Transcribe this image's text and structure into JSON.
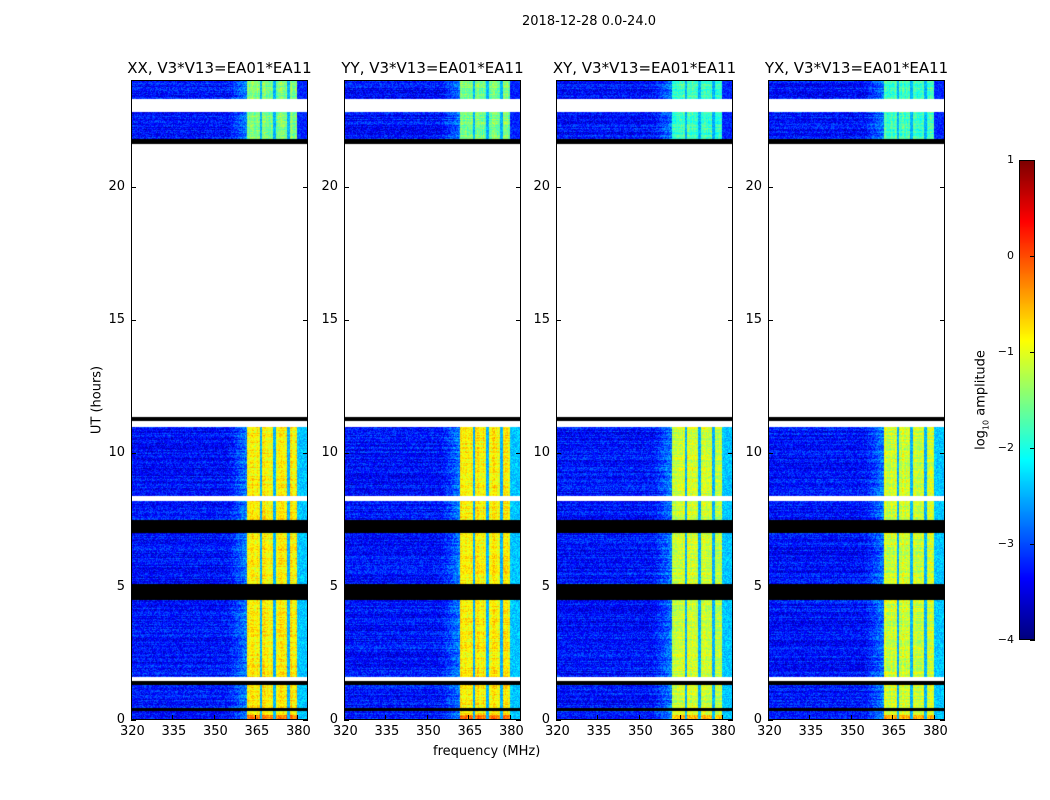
{
  "chart_data": {
    "type": "heatmap",
    "title": "2018-12-28 0.0-24.0",
    "xlabel": "frequency (MHz)",
    "ylabel": "UT (hours)",
    "xlim": [
      320,
      384
    ],
    "ylim": [
      0,
      24
    ],
    "xticks": [
      "320",
      "335",
      "350",
      "365",
      "380"
    ],
    "xtick_values": [
      320,
      335,
      350,
      365,
      380
    ],
    "yticks": [
      "0",
      "5",
      "10",
      "15",
      "20"
    ],
    "ytick_values": [
      0,
      5,
      10,
      15,
      20
    ],
    "panels": [
      {
        "title": "XX, V3*V13=EA01*EA11"
      },
      {
        "title": "YY, V3*V13=EA01*EA11"
      },
      {
        "title": "XY, V3*V13=EA01*EA11"
      },
      {
        "title": "YX, V3*V13=EA01*EA11"
      }
    ],
    "colorbar": {
      "label_prefix": "log",
      "label_sub": "10",
      "label_suffix": " amplitude",
      "colormap": "jet",
      "range": [
        -4,
        1
      ],
      "ticks": [
        "1",
        "0",
        "−1",
        "−2",
        "−3",
        "−4"
      ],
      "tick_values": [
        1,
        0,
        -1,
        -2,
        -3,
        -4
      ]
    },
    "time_segments_hours": [
      {
        "from": 0.0,
        "to": 0.35,
        "state": "data"
      },
      {
        "from": 0.35,
        "to": 0.45,
        "state": "flagged"
      },
      {
        "from": 0.45,
        "to": 1.3,
        "state": "data"
      },
      {
        "from": 1.3,
        "to": 1.45,
        "state": "flagged"
      },
      {
        "from": 1.45,
        "to": 1.6,
        "state": "empty"
      },
      {
        "from": 1.6,
        "to": 4.5,
        "state": "data"
      },
      {
        "from": 4.5,
        "to": 5.1,
        "state": "flagged"
      },
      {
        "from": 5.1,
        "to": 7.0,
        "state": "data"
      },
      {
        "from": 7.0,
        "to": 7.5,
        "state": "flagged"
      },
      {
        "from": 7.5,
        "to": 8.2,
        "state": "data"
      },
      {
        "from": 8.2,
        "to": 8.4,
        "state": "empty"
      },
      {
        "from": 8.4,
        "to": 11.0,
        "state": "data"
      },
      {
        "from": 11.0,
        "to": 11.2,
        "state": "empty"
      },
      {
        "from": 11.2,
        "to": 11.35,
        "state": "flagged"
      },
      {
        "from": 11.35,
        "to": 21.6,
        "state": "empty"
      },
      {
        "from": 21.6,
        "to": 21.8,
        "state": "flagged"
      },
      {
        "from": 21.8,
        "to": 22.8,
        "state": "data"
      },
      {
        "from": 22.8,
        "to": 23.3,
        "state": "empty"
      },
      {
        "from": 23.3,
        "to": 24.0,
        "state": "data"
      }
    ],
    "spectral_levels_log10": {
      "low_band_320_362": -3.3,
      "high_band_362_380": -0.8,
      "subband_gaps": [
        367,
        372,
        377
      ],
      "gap_level": -2.5,
      "edge_band_380_384": -3.2
    }
  }
}
